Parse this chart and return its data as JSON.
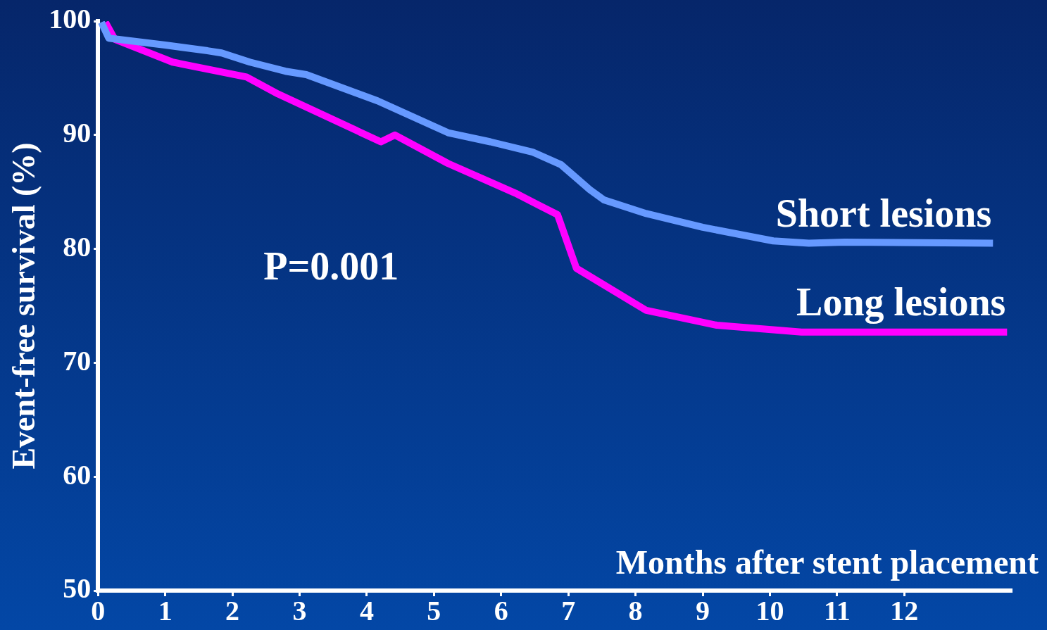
{
  "chart_data": {
    "type": "line",
    "xlabel": "Months after stent placement",
    "ylabel": "Event-free survival (%)",
    "xlim": [
      0,
      13.6
    ],
    "xticks": [
      0,
      1,
      2,
      3,
      4,
      5,
      6,
      7,
      8,
      9,
      10,
      11,
      12
    ],
    "ylim": [
      50,
      100
    ],
    "yticks": [
      50,
      60,
      70,
      80,
      90,
      100
    ],
    "grid": false,
    "legend": false,
    "marker": "none",
    "line_style": "solid",
    "annotations": [
      "P=0.001"
    ],
    "series": [
      {
        "name": "Short lesions",
        "color": "#6699ff",
        "x": [
          0.05,
          0.16,
          1,
          1.63,
          1.84,
          2.26,
          2.79,
          3.1,
          4.16,
          5.21,
          5.84,
          6.47,
          6.89,
          7.32,
          7.53,
          8.16,
          9,
          10.05,
          10.58,
          11.11,
          13.32
        ],
        "values": [
          99.9,
          98.5,
          97.9,
          97.4,
          97.2,
          96.4,
          95.6,
          95.3,
          93,
          90.2,
          89.4,
          88.5,
          87.4,
          85.2,
          84.3,
          83.1,
          81.9,
          80.7,
          80.5,
          80.6,
          80.5
        ]
      },
      {
        "name": "Long lesions",
        "color": "#ff00ff",
        "x": [
          0.11,
          0.25,
          1.11,
          2.21,
          2.68,
          4.21,
          4.42,
          5.21,
          6.21,
          6.84,
          7.12,
          8.16,
          9.21,
          10.47,
          13.53
        ],
        "values": [
          99.9,
          98.4,
          96.4,
          95.1,
          93.6,
          89.4,
          90,
          87.5,
          84.9,
          83,
          78.3,
          74.6,
          73.3,
          72.7,
          72.7
        ]
      }
    ]
  }
}
